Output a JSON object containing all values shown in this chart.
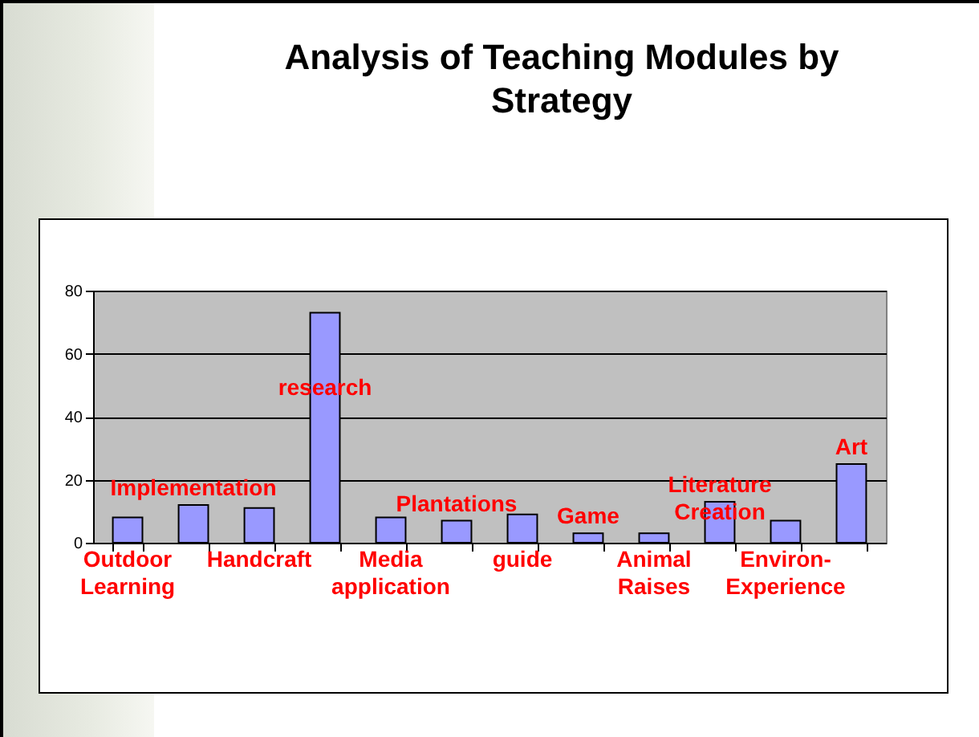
{
  "chart_data": {
    "type": "bar",
    "title": "Analysis of Teaching Modules by Strategy",
    "categories": [
      "Outdoor Learning",
      "Implementation",
      "Handcraft",
      "research",
      "Media application",
      "Plantations",
      "guide",
      "Game",
      "Animal Raises",
      "Literature Creation",
      "Environ-Experience",
      "Art"
    ],
    "values": [
      8,
      12,
      11,
      73,
      8,
      7,
      9,
      3,
      3,
      13,
      7,
      25
    ],
    "color": "#9999ff",
    "ylim": [
      0,
      80
    ],
    "yticks": [
      0,
      20,
      40,
      60,
      80
    ],
    "grid": "y"
  }
}
